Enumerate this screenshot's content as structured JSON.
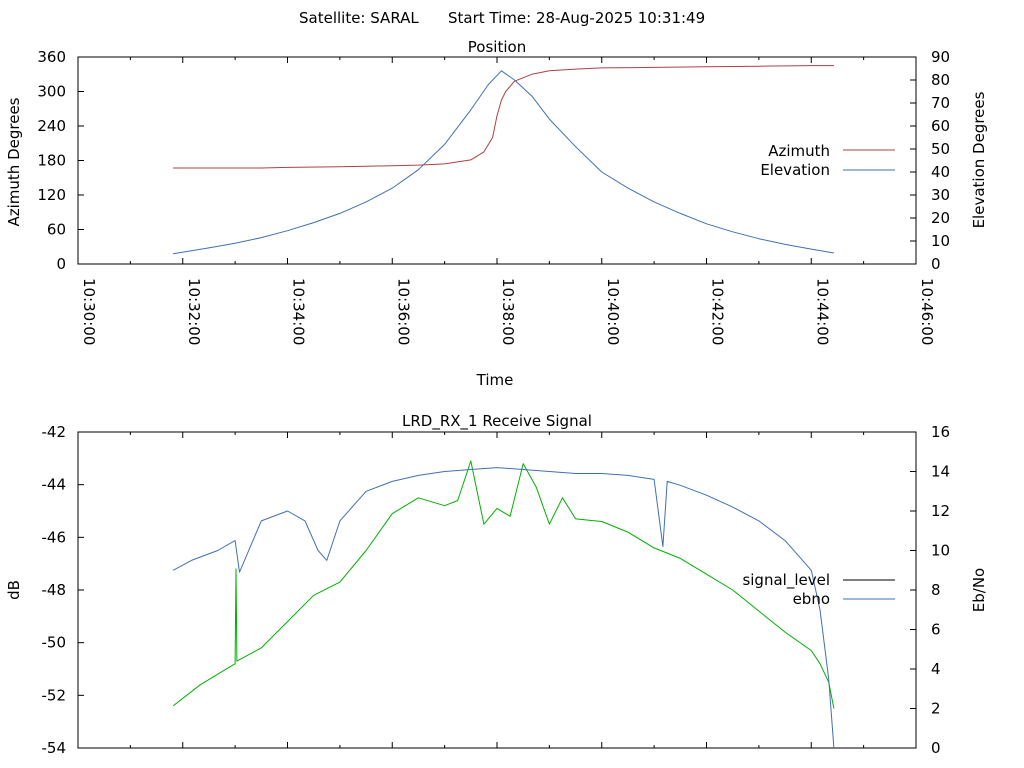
{
  "header": {
    "satellite_label": "Satellite: SARAL",
    "start_label": "Start Time: 28-Aug-2025 10:31:49"
  },
  "chart_data": [
    {
      "type": "line",
      "title": "Position",
      "xlabel": "Time",
      "ylabel": "Azimuth Degrees",
      "y2label": "Elevation Degrees",
      "xlim": [
        "10:30:00",
        "10:46:00"
      ],
      "ylim": [
        0,
        360
      ],
      "y2lim": [
        0,
        90
      ],
      "y_ticks": [
        "0",
        "60",
        "120",
        "180",
        "240",
        "300",
        "360"
      ],
      "y2_ticks": [
        "0",
        "10",
        "20",
        "30",
        "40",
        "50",
        "60",
        "70",
        "80",
        "90"
      ],
      "x_ticks": [
        "10:30:00",
        "10:32:00",
        "10:34:00",
        "10:36:00",
        "10:38:00",
        "10:40:00",
        "10:42:00",
        "10:44:00",
        "10:46:00"
      ],
      "legend_position": "right",
      "series": [
        {
          "name": "Azimuth",
          "axis": "left",
          "color": "#b04040",
          "x": [
            "10:31:49",
            "10:32:30",
            "10:33:30",
            "10:34:00",
            "10:35:00",
            "10:35:30",
            "10:36:00",
            "10:36:30",
            "10:37:00",
            "10:37:30",
            "10:37:45",
            "10:37:55",
            "10:38:00",
            "10:38:05",
            "10:38:10",
            "10:38:20",
            "10:38:40",
            "10:39:00",
            "10:39:30",
            "10:40:00",
            "10:41:00",
            "10:42:00",
            "10:43:00",
            "10:44:00",
            "10:44:26"
          ],
          "y": [
            167,
            167,
            167,
            168,
            169,
            170,
            171,
            172,
            174,
            181,
            195,
            220,
            258,
            285,
            300,
            318,
            330,
            336,
            339,
            341,
            342,
            343,
            344,
            345,
            345
          ]
        },
        {
          "name": "Elevation",
          "axis": "right",
          "color": "#4070b0",
          "x": [
            "10:31:49",
            "10:32:30",
            "10:33:00",
            "10:33:30",
            "10:34:00",
            "10:34:30",
            "10:35:00",
            "10:35:30",
            "10:36:00",
            "10:36:30",
            "10:37:00",
            "10:37:30",
            "10:37:50",
            "10:38:05",
            "10:38:20",
            "10:38:40",
            "10:39:00",
            "10:39:30",
            "10:40:00",
            "10:40:30",
            "10:41:00",
            "10:41:30",
            "10:42:00",
            "10:42:30",
            "10:43:00",
            "10:43:30",
            "10:44:00",
            "10:44:26"
          ],
          "y": [
            4.5,
            7,
            9,
            11.5,
            14.5,
            18,
            22,
            27,
            33,
            41,
            52,
            67,
            78,
            84,
            80,
            73,
            63,
            51,
            40,
            33,
            27,
            22,
            17.5,
            14,
            11,
            8.5,
            6.5,
            4.8
          ]
        }
      ]
    },
    {
      "type": "line",
      "title": "LRD_RX_1 Receive Signal",
      "ylabel": "dB",
      "y2label": "Eb/No",
      "xlim": [
        "10:30:00",
        "10:46:00"
      ],
      "ylim": [
        -54,
        -42
      ],
      "y2lim": [
        0,
        16
      ],
      "y_ticks": [
        "-54",
        "-52",
        "-50",
        "-48",
        "-46",
        "-44",
        "-42"
      ],
      "y2_ticks": [
        "0",
        "2",
        "4",
        "6",
        "8",
        "10",
        "12",
        "14",
        "16"
      ],
      "legend_position": "right",
      "series": [
        {
          "name": "signal_level",
          "axis": "left",
          "color": "#00b000",
          "x": [
            "10:31:49",
            "10:32:20",
            "10:33:00",
            "10:33:01",
            "10:33:02",
            "10:33:30",
            "10:34:00",
            "10:34:30",
            "10:35:00",
            "10:35:30",
            "10:36:00",
            "10:36:30",
            "10:37:00",
            "10:37:15",
            "10:37:30",
            "10:37:45",
            "10:38:00",
            "10:38:15",
            "10:38:30",
            "10:38:45",
            "10:39:00",
            "10:39:15",
            "10:39:30",
            "10:40:00",
            "10:40:30",
            "10:41:00",
            "10:41:30",
            "10:42:00",
            "10:42:30",
            "10:43:00",
            "10:43:30",
            "10:44:00",
            "10:44:10",
            "10:44:20",
            "10:44:26"
          ],
          "y": [
            -52.4,
            -51.6,
            -50.8,
            -47.2,
            -50.7,
            -50.2,
            -49.2,
            -48.2,
            -47.7,
            -46.5,
            -45.1,
            -44.5,
            -44.8,
            -44.6,
            -43.1,
            -45.5,
            -44.9,
            -45.2,
            -43.2,
            -44.1,
            -45.5,
            -44.5,
            -45.3,
            -45.4,
            -45.8,
            -46.4,
            -46.8,
            -47.4,
            -48.0,
            -48.8,
            -49.6,
            -50.3,
            -50.8,
            -51.5,
            -52.5
          ]
        },
        {
          "name": "ebno",
          "axis": "right",
          "color": "#4070b0",
          "x": [
            "10:31:49",
            "10:32:10",
            "10:32:40",
            "10:33:00",
            "10:33:05",
            "10:33:30",
            "10:34:00",
            "10:34:20",
            "10:34:35",
            "10:34:45",
            "10:35:00",
            "10:35:30",
            "10:36:00",
            "10:36:30",
            "10:37:00",
            "10:37:30",
            "10:38:00",
            "10:38:30",
            "10:39:00",
            "10:39:30",
            "10:40:00",
            "10:40:30",
            "10:41:00",
            "10:41:10",
            "10:41:15",
            "10:41:30",
            "10:42:00",
            "10:42:30",
            "10:43:00",
            "10:43:30",
            "10:44:00",
            "10:44:10",
            "10:44:20",
            "10:44:26"
          ],
          "y": [
            9,
            9.5,
            10,
            10.5,
            8.9,
            11.5,
            12,
            11.5,
            10,
            9.5,
            11.5,
            13,
            13.5,
            13.8,
            14,
            14.1,
            14.2,
            14.1,
            14,
            13.9,
            13.9,
            13.8,
            13.6,
            10.2,
            13.5,
            13.3,
            12.8,
            12.2,
            11.5,
            10.5,
            9,
            7,
            3.5,
            0
          ]
        }
      ]
    }
  ]
}
